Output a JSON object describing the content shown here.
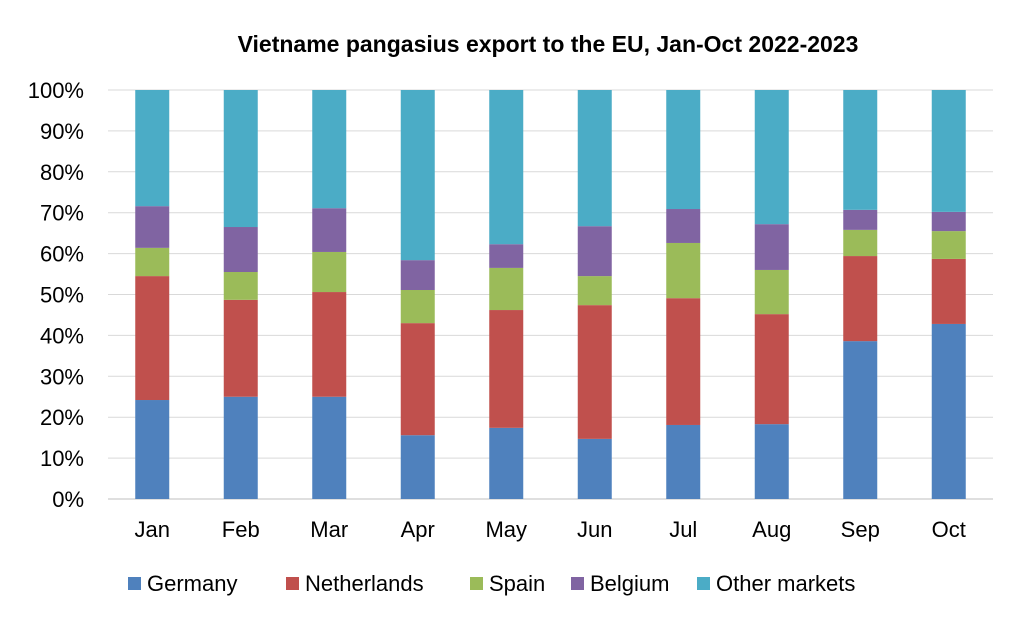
{
  "chart_data": {
    "type": "bar",
    "stacked": true,
    "percent": true,
    "title": "Vietname pangasius export to the EU, Jan-Oct 2022-2023",
    "xlabel": "",
    "ylabel": "",
    "ylim": [
      0,
      100
    ],
    "yticks": [
      "0%",
      "10%",
      "20%",
      "30%",
      "40%",
      "50%",
      "60%",
      "70%",
      "80%",
      "90%",
      "100%"
    ],
    "grid": true,
    "legend_position": "bottom",
    "categories": [
      "Jan",
      "Feb",
      "Mar",
      "Apr",
      "May",
      "Jun",
      "Jul",
      "Aug",
      "Sep",
      "Oct"
    ],
    "series": [
      {
        "name": "Germany",
        "color": "#4F81BD",
        "values": [
          24.2,
          25.0,
          25.0,
          15.6,
          17.4,
          14.7,
          18.1,
          18.3,
          38.6,
          42.8
        ]
      },
      {
        "name": "Netherlands",
        "color": "#C0504D",
        "values": [
          30.3,
          23.7,
          25.6,
          27.4,
          28.8,
          32.7,
          31.0,
          26.9,
          20.8,
          15.9
        ]
      },
      {
        "name": "Spain",
        "color": "#9BBB59",
        "values": [
          6.9,
          6.8,
          9.8,
          8.1,
          10.3,
          7.1,
          13.5,
          10.8,
          6.4,
          6.8
        ]
      },
      {
        "name": "Belgium",
        "color": "#8064A2",
        "values": [
          10.2,
          11.0,
          10.7,
          7.3,
          5.8,
          12.2,
          8.3,
          11.2,
          4.9,
          4.7
        ]
      },
      {
        "name": "Other markets",
        "color": "#4BACC6",
        "values": [
          28.4,
          33.5,
          28.9,
          41.6,
          37.7,
          33.3,
          29.1,
          32.8,
          29.3,
          29.8
        ]
      }
    ]
  }
}
